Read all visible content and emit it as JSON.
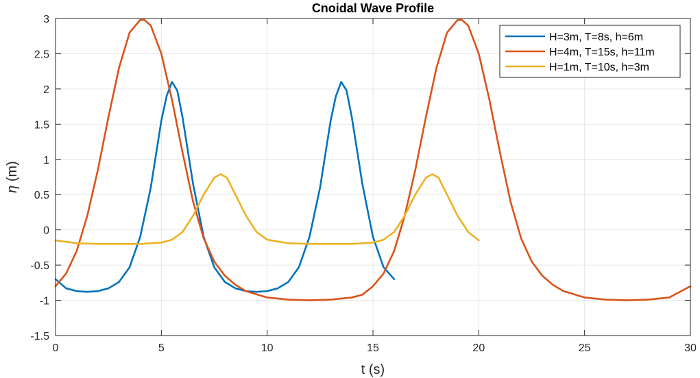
{
  "chart_data": {
    "type": "line",
    "title": "Cnoidal Wave Profile",
    "xlabel": "t (s)",
    "ylabel_symbol": "η",
    "ylabel_unit": " (m)",
    "xlim": [
      0,
      30
    ],
    "ylim": [
      -1.5,
      3
    ],
    "xticks": [
      0,
      5,
      10,
      15,
      20,
      25,
      30
    ],
    "yticks": [
      -1.5,
      -1,
      -0.5,
      0,
      0.5,
      1,
      1.5,
      2,
      2.5,
      3
    ],
    "xtick_labels": [
      "0",
      "5",
      "10",
      "15",
      "20",
      "25",
      "30"
    ],
    "ytick_labels": [
      "-1.5",
      "-1",
      "-0.5",
      "0",
      "0.5",
      "1",
      "1.5",
      "2",
      "2.5",
      "3"
    ],
    "grid": true,
    "legend_position": "top-right",
    "series": [
      {
        "name": "H=3m, T=8s, h=6m",
        "color": "#0072BD",
        "x": [
          0,
          0.5,
          1.0,
          1.5,
          2.0,
          2.5,
          3.0,
          3.5,
          4.0,
          4.5,
          5.0,
          5.25,
          5.5,
          5.75,
          6.0,
          6.5,
          7.0,
          7.5,
          8.0,
          8.5,
          9.0,
          9.5,
          10.0,
          10.5,
          11.0,
          11.5,
          12.0,
          12.5,
          13.0,
          13.25,
          13.5,
          13.75,
          14.0,
          14.5,
          15.0,
          15.5,
          16.0
        ],
        "y": [
          -0.7,
          -0.83,
          -0.87,
          -0.88,
          -0.87,
          -0.83,
          -0.74,
          -0.53,
          -0.1,
          0.6,
          1.55,
          1.9,
          2.1,
          1.98,
          1.6,
          0.65,
          -0.1,
          -0.53,
          -0.74,
          -0.83,
          -0.87,
          -0.88,
          -0.87,
          -0.83,
          -0.74,
          -0.53,
          -0.1,
          0.6,
          1.55,
          1.9,
          2.1,
          1.98,
          1.6,
          0.65,
          -0.1,
          -0.53,
          -0.7
        ]
      },
      {
        "name": "H=4m, T=15s, h=11m",
        "color": "#D95319",
        "x": [
          0,
          0.5,
          1.0,
          1.5,
          2.0,
          2.5,
          3.0,
          3.5,
          4.0,
          4.2,
          4.5,
          5.0,
          5.5,
          6.0,
          6.5,
          7.0,
          7.5,
          8.0,
          8.5,
          9.0,
          10.0,
          11.0,
          12.0,
          13.0,
          14.0,
          14.5,
          15.0,
          15.5,
          16.0,
          16.5,
          17.0,
          17.5,
          18.0,
          18.5,
          19.0,
          19.2,
          19.5,
          20.0,
          20.5,
          21.0,
          21.5,
          22.0,
          22.5,
          23.0,
          23.5,
          24.0,
          25.0,
          26.0,
          27.0,
          28.0,
          29.0,
          30.0
        ],
        "y": [
          -0.8,
          -0.62,
          -0.3,
          0.2,
          0.85,
          1.6,
          2.3,
          2.8,
          2.98,
          2.98,
          2.9,
          2.5,
          1.85,
          1.1,
          0.4,
          -0.12,
          -0.45,
          -0.65,
          -0.78,
          -0.87,
          -0.96,
          -0.99,
          -1.0,
          -0.99,
          -0.96,
          -0.92,
          -0.8,
          -0.62,
          -0.3,
          0.2,
          0.85,
          1.6,
          2.3,
          2.8,
          2.98,
          2.98,
          2.9,
          2.5,
          1.85,
          1.1,
          0.4,
          -0.12,
          -0.45,
          -0.65,
          -0.78,
          -0.87,
          -0.96,
          -0.99,
          -1.0,
          -0.99,
          -0.96,
          -0.8
        ]
      },
      {
        "name": "H=1m, T=10s, h=3m",
        "color": "#EDB120",
        "x": [
          0,
          1.0,
          2.0,
          3.0,
          4.0,
          5.0,
          5.5,
          6.0,
          6.5,
          7.0,
          7.5,
          7.8,
          8.1,
          8.5,
          9.0,
          9.5,
          10.0,
          11.0,
          12.0,
          13.0,
          14.0,
          15.0,
          15.5,
          16.0,
          16.5,
          17.0,
          17.5,
          17.8,
          18.1,
          18.5,
          19.0,
          19.5,
          20.0
        ],
        "y": [
          -0.15,
          -0.19,
          -0.2,
          -0.2,
          -0.2,
          -0.18,
          -0.14,
          -0.03,
          0.2,
          0.5,
          0.74,
          0.79,
          0.74,
          0.5,
          0.2,
          -0.03,
          -0.14,
          -0.19,
          -0.2,
          -0.2,
          -0.2,
          -0.18,
          -0.14,
          -0.03,
          0.2,
          0.5,
          0.74,
          0.79,
          0.74,
          0.5,
          0.2,
          -0.03,
          -0.15
        ]
      }
    ]
  }
}
